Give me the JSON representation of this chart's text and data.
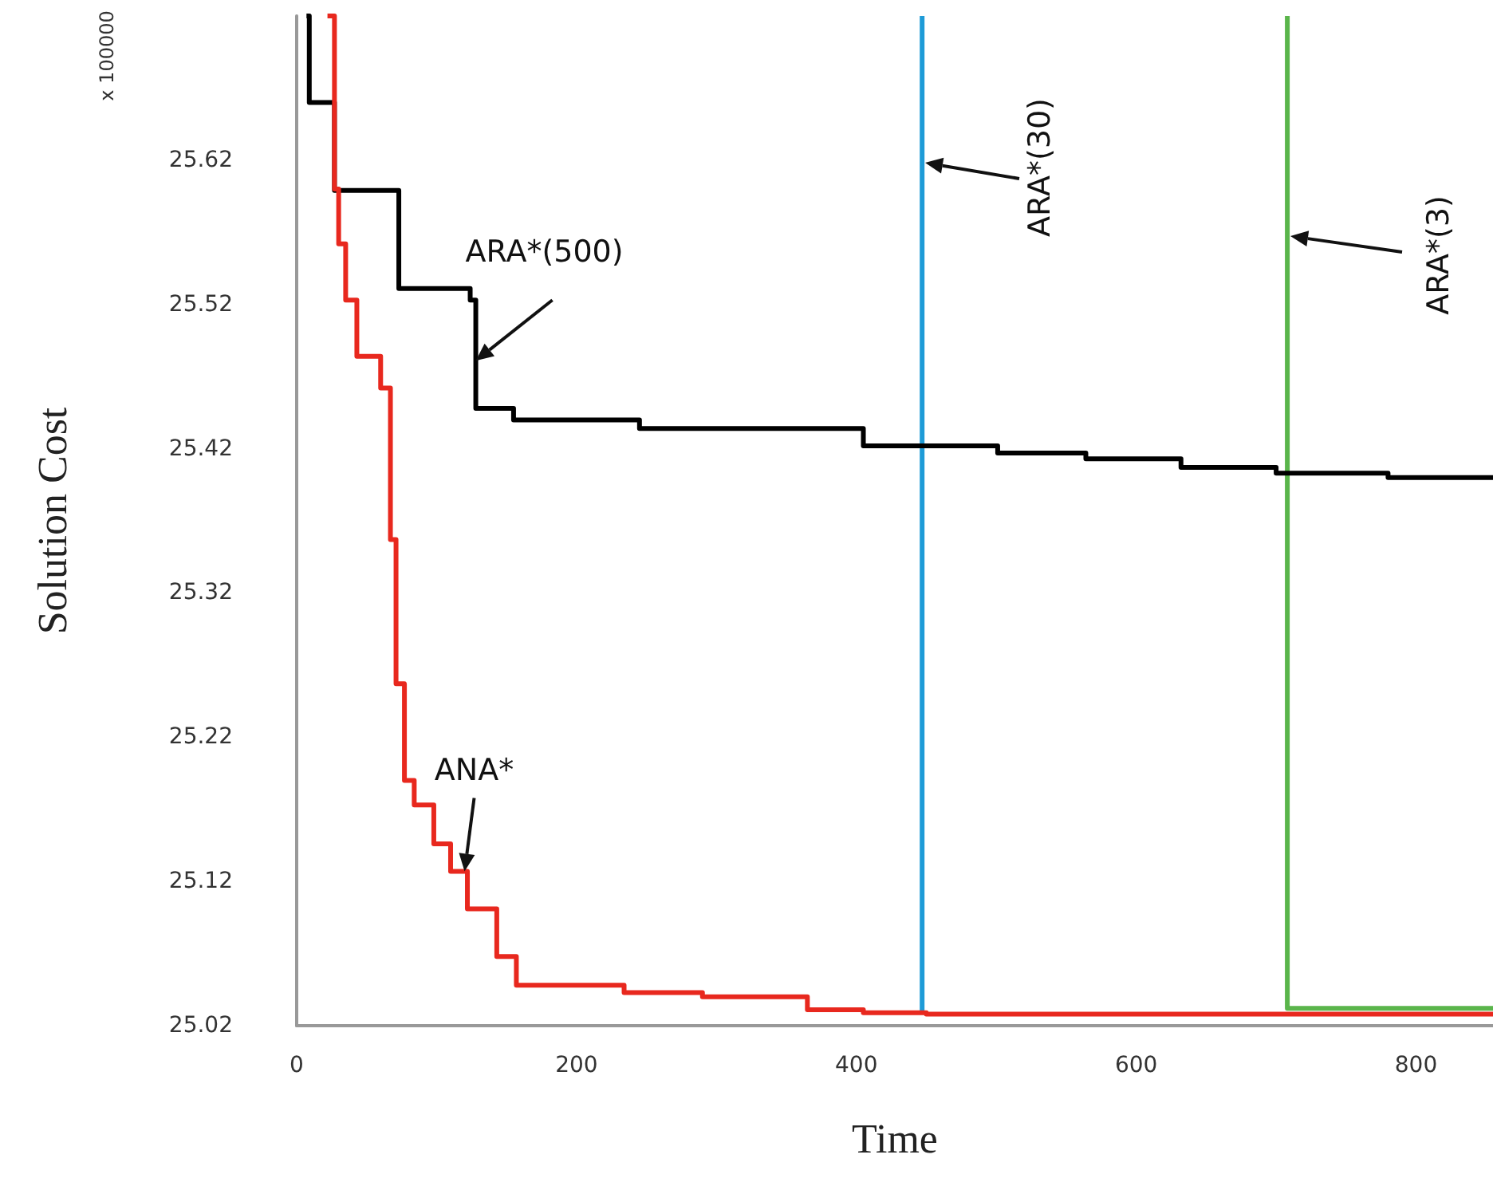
{
  "chart_data": {
    "type": "step",
    "xlabel": "Time",
    "ylabel": "Solution Cost",
    "xlim": [
      0,
      855
    ],
    "ylim": [
      25.02,
      25.72
    ],
    "xticks": [
      0,
      200,
      400,
      600,
      800
    ],
    "yticks": [
      25.02,
      25.12,
      25.22,
      25.32,
      25.42,
      25.52,
      25.62
    ],
    "grid": false,
    "marker": "none",
    "annotations": [
      "x 100000",
      {
        "text": "ARA*(500)",
        "x": 128,
        "y": 25.481
      },
      {
        "text": "ANA*",
        "x": 120,
        "y": 25.127
      },
      "ARA*(30)",
      "ARA*(3)"
    ],
    "series": [
      {
        "color": "#000000",
        "x": [
          7,
          9,
          27,
          73,
          124,
          128,
          155,
          245,
          405,
          501,
          564,
          632,
          700,
          780,
          855
        ],
        "values": [
          25.72,
          25.66,
          25.599,
          25.531,
          25.523,
          25.448,
          25.44,
          25.434,
          25.422,
          25.417,
          25.413,
          25.407,
          25.403,
          25.4,
          25.4
        ]
      },
      {
        "color": "#e8281e",
        "x": [
          22,
          27,
          30,
          35,
          43,
          60,
          67,
          71,
          77,
          84,
          98,
          110,
          122,
          143,
          157,
          234,
          290,
          365,
          405,
          450,
          855
        ],
        "values": [
          25.72,
          25.6,
          25.562,
          25.523,
          25.484,
          25.462,
          25.357,
          25.257,
          25.19,
          25.173,
          25.146,
          25.127,
          25.101,
          25.068,
          25.048,
          25.043,
          25.04,
          25.031,
          25.029,
          25.028,
          25.028
        ]
      },
      {
        "type": "line",
        "color": "#1e9bd7",
        "x": [
          447,
          447
        ],
        "values": [
          25.72,
          25.03
        ]
      },
      {
        "type": "line",
        "color": "#5ab54b",
        "x": [
          708,
          708,
          855
        ],
        "values": [
          25.72,
          25.032,
          25.032
        ]
      }
    ]
  }
}
